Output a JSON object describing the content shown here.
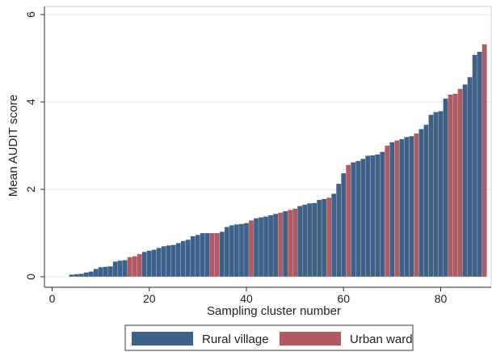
{
  "chart_data": {
    "type": "bar",
    "xlabel": "Sampling cluster number",
    "ylabel": "Mean AUDIT score",
    "xlim": [
      0,
      89.5
    ],
    "ylim": [
      0,
      6
    ],
    "xticks": [
      0,
      20,
      40,
      60,
      80
    ],
    "yticks": [
      0,
      2,
      4,
      6
    ],
    "grid": "horizontal",
    "legend_position": "bottom",
    "legend": [
      {
        "key": "R",
        "label": "Rural village",
        "color": "#3e6287"
      },
      {
        "key": "U",
        "label": "Urban ward",
        "color": "#b05a63"
      }
    ],
    "x": [
      1,
      2,
      3,
      4,
      5,
      6,
      7,
      8,
      9,
      10,
      11,
      12,
      13,
      14,
      15,
      16,
      17,
      18,
      19,
      20,
      21,
      22,
      23,
      24,
      25,
      26,
      27,
      28,
      29,
      30,
      31,
      32,
      33,
      34,
      35,
      36,
      37,
      38,
      39,
      40,
      41,
      42,
      43,
      44,
      45,
      46,
      47,
      48,
      49,
      50,
      51,
      52,
      53,
      54,
      55,
      56,
      57,
      58,
      59,
      60,
      61,
      62,
      63,
      64,
      65,
      66,
      67,
      68,
      69,
      70,
      71,
      72,
      73,
      74,
      75,
      76,
      77,
      78,
      79,
      80,
      81,
      82,
      83,
      84,
      85,
      86,
      87,
      88,
      89
    ],
    "values": [
      0,
      0,
      0,
      0.05,
      0.06,
      0.07,
      0.1,
      0.12,
      0.18,
      0.22,
      0.23,
      0.24,
      0.35,
      0.37,
      0.38,
      0.45,
      0.47,
      0.52,
      0.57,
      0.6,
      0.62,
      0.66,
      0.7,
      0.72,
      0.73,
      0.77,
      0.82,
      0.85,
      0.93,
      0.96,
      1.0,
      1.0,
      1.0,
      1.0,
      1.03,
      1.14,
      1.18,
      1.2,
      1.21,
      1.23,
      1.29,
      1.34,
      1.36,
      1.38,
      1.41,
      1.44,
      1.47,
      1.5,
      1.53,
      1.56,
      1.62,
      1.65,
      1.68,
      1.69,
      1.76,
      1.78,
      1.81,
      1.9,
      2.13,
      2.37,
      2.56,
      2.62,
      2.65,
      2.7,
      2.77,
      2.78,
      2.8,
      2.86,
      3.0,
      3.08,
      3.12,
      3.15,
      3.2,
      3.22,
      3.28,
      3.38,
      3.48,
      3.71,
      3.77,
      3.79,
      4.08,
      4.17,
      4.19,
      4.3,
      4.4,
      4.57,
      5.08,
      5.15,
      5.32
    ],
    "groups": [
      "R",
      "R",
      "R",
      "R",
      "R",
      "R",
      "R",
      "R",
      "R",
      "R",
      "R",
      "R",
      "R",
      "R",
      "R",
      "U",
      "U",
      "U",
      "R",
      "R",
      "R",
      "R",
      "R",
      "R",
      "R",
      "R",
      "R",
      "R",
      "R",
      "R",
      "R",
      "R",
      "U",
      "U",
      "R",
      "R",
      "R",
      "R",
      "R",
      "R",
      "U",
      "R",
      "R",
      "R",
      "R",
      "R",
      "U",
      "R",
      "U",
      "U",
      "R",
      "R",
      "R",
      "R",
      "R",
      "R",
      "U",
      "R",
      "R",
      "R",
      "U",
      "R",
      "R",
      "R",
      "R",
      "R",
      "R",
      "R",
      "U",
      "R",
      "U",
      "R",
      "R",
      "R",
      "U",
      "R",
      "R",
      "R",
      "R",
      "R",
      "R",
      "U",
      "U",
      "U",
      "R",
      "R",
      "R",
      "R",
      "U"
    ]
  }
}
